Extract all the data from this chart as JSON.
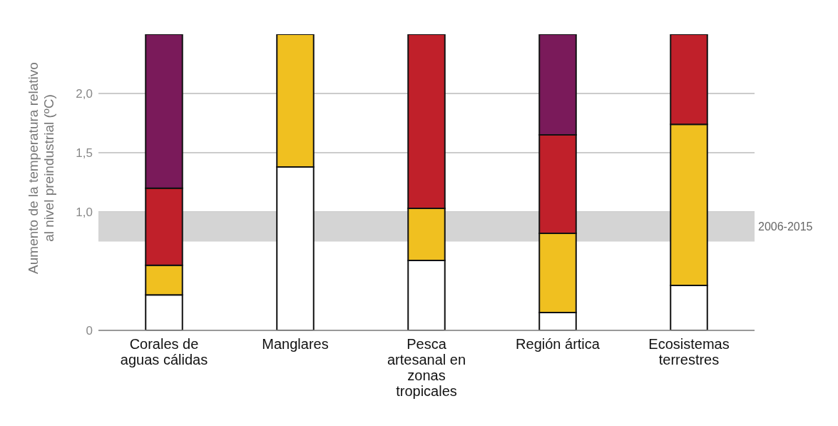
{
  "chart_data": {
    "type": "bar",
    "stacked": true,
    "ylabel": "Aumento de la temperatura relativo al nivel preindustrial (ºC)",
    "categories": [
      "Corales de aguas cálidas",
      "Manglares",
      "Pesca artesanal en zonas tropicales",
      "Región ártica",
      "Ecosistemas terrestres"
    ],
    "series": [
      {
        "color": "#ffffff",
        "values": [
          0.3,
          1.38,
          0.59,
          0.15,
          0.38
        ]
      },
      {
        "color": "#f0c020",
        "values": [
          0.25,
          1.12,
          0.44,
          0.67,
          1.36
        ]
      },
      {
        "color": "#c0202a",
        "values": [
          0.65,
          0,
          1.47,
          0.83,
          0.76
        ]
      },
      {
        "color": "#7a1a5a",
        "values": [
          1.3,
          0,
          0,
          0.85,
          0
        ]
      }
    ],
    "ylim": [
      0,
      2.5
    ],
    "yticks": [
      0,
      {
        "value": 1,
        "label": "1,0"
      },
      {
        "value": 1.5,
        "label": "1,5"
      },
      {
        "value": 2,
        "label": "2,0"
      }
    ],
    "grid": "y",
    "legend": false,
    "bands": [
      {
        "axis": "y",
        "from": 0.75,
        "to": 1.0,
        "label": "2006-2015",
        "color": "#d4d4d4"
      }
    ]
  }
}
